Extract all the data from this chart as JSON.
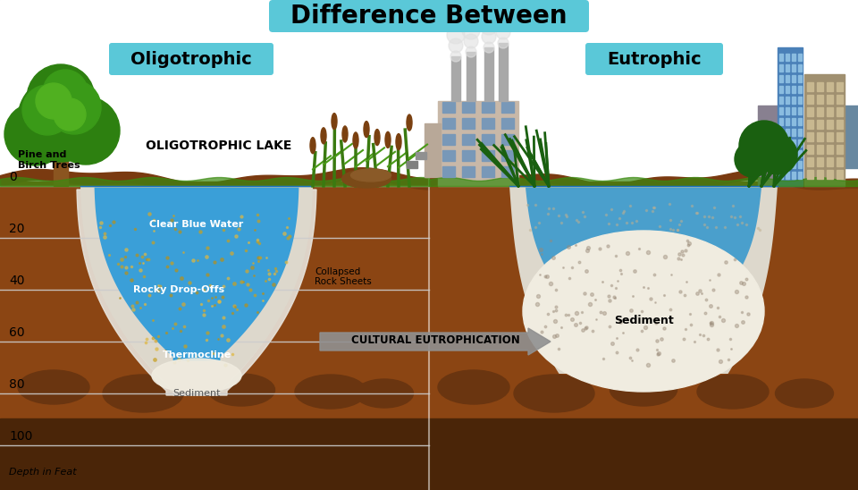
{
  "title": "Difference Between",
  "title_bg": "#5ac8d8",
  "left_label": "Oligotrophic",
  "right_label": "Eutrophic",
  "label_bg": "#5ac8d8",
  "lake_label": "OLIGOTROPHIC LAKE",
  "tree_label": "Pine and\nBirch Trees",
  "clear_water_label": "Clear Blue Water",
  "rocky_label": "Rocky Drop-Offs",
  "thermocline_label": "Thermocline",
  "sediment_label_left": "Sediment",
  "collapsed_label": "Collapsed\nRock Sheets",
  "sediment_label_right": "Sediment",
  "arrow_label": "CULTURAL EUTROPHICATION",
  "depth_label": "Depth in Feat",
  "depth_ticks": [
    0,
    20,
    40,
    60,
    80,
    100
  ],
  "water_clear": "#3a9fd8",
  "water_murky": "#4a9fcc",
  "sediment_white": "#f0ece0",
  "ground_top": "#8B4513",
  "ground_mid": "#7a3a10",
  "ground_dark": "#4a2508",
  "sky_color": "#c5e8f5",
  "white_panel": "#ffffff",
  "grass_green": "#4a9a18",
  "tree_dark": "#2a7a08",
  "tree_light": "#4aaa18",
  "arrow_color": "#909090",
  "depth_line_color": "#cccccc"
}
